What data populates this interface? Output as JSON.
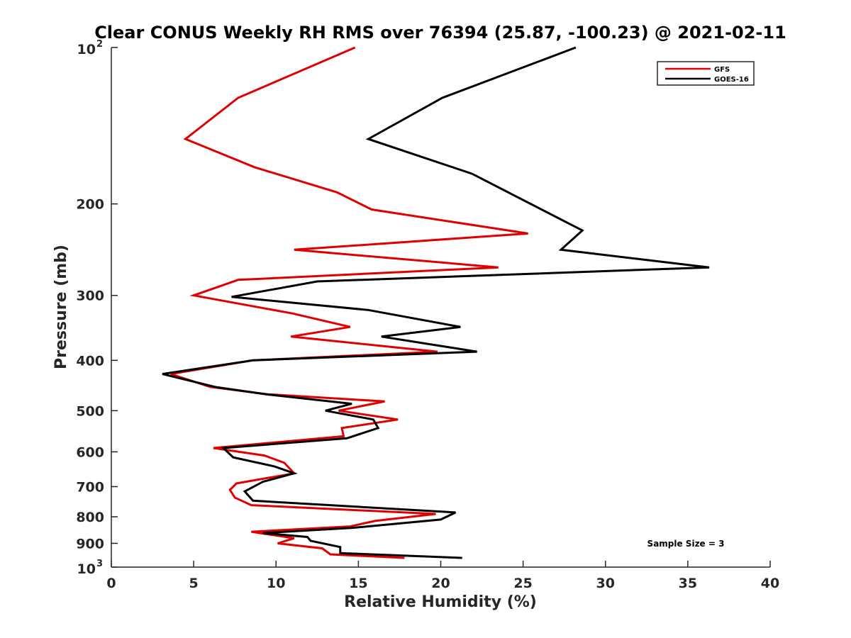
{
  "chart_data": {
    "type": "line",
    "title": "Clear CONUS Weekly RH RMS over 76394 (25.87, -100.23) @ 2021-02-11",
    "xlabel": "Relative Humidity (%)",
    "ylabel": "Pressure (mb)",
    "xlim": [
      0,
      40
    ],
    "ylim": [
      100,
      1000
    ],
    "y_scale": "log",
    "y_reversed": true,
    "x_ticks": [
      "0",
      "5",
      "10",
      "15",
      "20",
      "25",
      "30",
      "35",
      "40"
    ],
    "y_ticks": [
      {
        "value": 100,
        "base": "10",
        "exp": "2"
      },
      {
        "value": 200,
        "label": "200"
      },
      {
        "value": 300,
        "label": "300"
      },
      {
        "value": 400,
        "label": "400"
      },
      {
        "value": 500,
        "label": "500"
      },
      {
        "value": 600,
        "label": "600"
      },
      {
        "value": 700,
        "label": "700"
      },
      {
        "value": 800,
        "label": "800"
      },
      {
        "value": 900,
        "label": "900"
      },
      {
        "value": 1000,
        "base": "10",
        "exp": "3"
      }
    ],
    "grid": false,
    "legend_position": "top-right",
    "annotation": "Sample Size = 3",
    "series": [
      {
        "name": "GFS",
        "color": "#e00000",
        "points": [
          [
            14.8,
            100
          ],
          [
            7.7,
            125
          ],
          [
            4.5,
            150
          ],
          [
            8.7,
            170
          ],
          [
            13.7,
            190
          ],
          [
            15.8,
            205
          ],
          [
            25.3,
            228
          ],
          [
            11.1,
            245
          ],
          [
            23.5,
            265
          ],
          [
            7.7,
            280
          ],
          [
            5.0,
            300
          ],
          [
            11.0,
            325
          ],
          [
            14.5,
            345
          ],
          [
            10.9,
            360
          ],
          [
            19.8,
            385
          ],
          [
            8.6,
            400
          ],
          [
            3.6,
            425
          ],
          [
            6.0,
            450
          ],
          [
            9.5,
            465
          ],
          [
            16.6,
            480
          ],
          [
            13.8,
            500
          ],
          [
            17.4,
            520
          ],
          [
            14.0,
            540
          ],
          [
            14.1,
            560
          ],
          [
            6.2,
            590
          ],
          [
            9.3,
            610
          ],
          [
            10.5,
            630
          ],
          [
            11.1,
            660
          ],
          [
            7.6,
            690
          ],
          [
            7.2,
            710
          ],
          [
            7.5,
            735
          ],
          [
            8.5,
            760
          ],
          [
            19.7,
            790
          ],
          [
            16.0,
            815
          ],
          [
            14.5,
            835
          ],
          [
            8.5,
            855
          ],
          [
            11.1,
            880
          ],
          [
            10.1,
            900
          ],
          [
            12.8,
            920
          ],
          [
            13.3,
            945
          ],
          [
            17.8,
            960
          ]
        ]
      },
      {
        "name": "GOES-16",
        "color": "#000000",
        "points": [
          [
            28.2,
            100
          ],
          [
            20.1,
            125
          ],
          [
            15.6,
            150
          ],
          [
            21.9,
            175
          ],
          [
            28.6,
            225
          ],
          [
            27.3,
            245
          ],
          [
            36.3,
            265
          ],
          [
            12.5,
            282
          ],
          [
            7.3,
            302
          ],
          [
            15.6,
            320
          ],
          [
            21.2,
            345
          ],
          [
            16.4,
            360
          ],
          [
            22.2,
            385
          ],
          [
            8.6,
            400
          ],
          [
            3.1,
            425
          ],
          [
            6.3,
            450
          ],
          [
            9.4,
            465
          ],
          [
            14.6,
            485
          ],
          [
            13.0,
            500
          ],
          [
            15.9,
            520
          ],
          [
            16.2,
            540
          ],
          [
            14.3,
            565
          ],
          [
            6.8,
            590
          ],
          [
            7.4,
            615
          ],
          [
            9.9,
            640
          ],
          [
            11.1,
            660
          ],
          [
            9.2,
            685
          ],
          [
            8.1,
            715
          ],
          [
            8.6,
            745
          ],
          [
            20.9,
            785
          ],
          [
            20.0,
            810
          ],
          [
            14.7,
            840
          ],
          [
            9.2,
            860
          ],
          [
            11.9,
            875
          ],
          [
            12.1,
            890
          ],
          [
            13.9,
            915
          ],
          [
            13.9,
            940
          ],
          [
            21.3,
            960
          ]
        ]
      }
    ]
  }
}
